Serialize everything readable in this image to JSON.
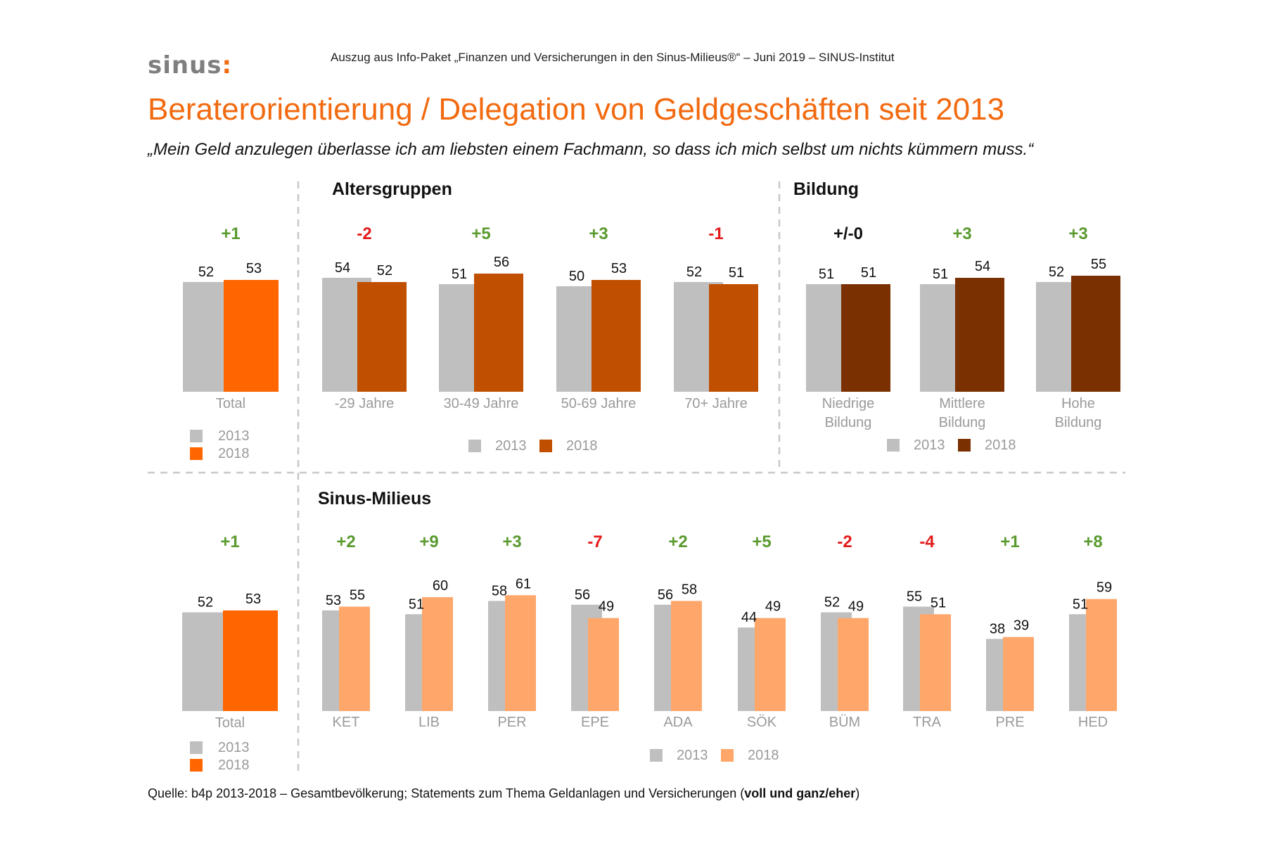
{
  "header": {
    "brand": "sinus",
    "brand_mark": ":",
    "source_line": "Auszug aus Info-Paket „Finanzen und Versicherungen in den Sinus-Milieus®“ – Juni 2019 – SINUS-Institut",
    "title": "Beraterorientierung / Delegation von Geldgeschäften seit 2013",
    "quote": "„Mein Geld anzulegen überlasse ich am liebsten einem Fachmann, so dass ich mich selbst um nichts kümmern muss.“"
  },
  "footer": {
    "prefix": "Quelle: b4p 2013-2018 – Gesamtbevölkerung; Statements zum Thema Geldanlagen und Versicherungen (",
    "bold": "voll und ganz/eher",
    "suffix": ")"
  },
  "colors": {
    "c2013": "#bfbfbf",
    "total2018": "#ff6600",
    "age2018": "#c04f00",
    "edu2018": "#7a3000",
    "milieu2018": "#ffa76b",
    "positive": "#5a9a2f",
    "negative": "#e31b1b",
    "neutral": "#111111",
    "title": "#f26a10"
  },
  "chart_data": [
    {
      "id": "total_top",
      "type": "bar",
      "title": "",
      "categories": [
        "Total"
      ],
      "series": [
        {
          "name": "2013",
          "values": [
            52
          ]
        },
        {
          "name": "2018",
          "values": [
            53
          ]
        }
      ],
      "changes": [
        "+1"
      ],
      "legend": [
        "2013",
        "2018"
      ]
    },
    {
      "id": "age",
      "type": "bar",
      "title": "Altersgruppen",
      "categories": [
        "-29 Jahre",
        "30-49 Jahre",
        "50-69 Jahre",
        "70+ Jahre"
      ],
      "series": [
        {
          "name": "2013",
          "values": [
            54,
            51,
            50,
            52
          ]
        },
        {
          "name": "2018",
          "values": [
            52,
            56,
            53,
            51
          ]
        }
      ],
      "changes": [
        "-2",
        "+5",
        "+3",
        "-1"
      ],
      "legend": [
        "2013",
        "2018"
      ]
    },
    {
      "id": "education",
      "type": "bar",
      "title": "Bildung",
      "categories": [
        [
          "Niedrige",
          "Bildung"
        ],
        [
          "Mittlere",
          "Bildung"
        ],
        [
          "Hohe",
          "Bildung"
        ]
      ],
      "series": [
        {
          "name": "2013",
          "values": [
            51,
            51,
            52
          ]
        },
        {
          "name": "2018",
          "values": [
            51,
            54,
            55
          ]
        }
      ],
      "changes": [
        "+/-0",
        "+3",
        "+3"
      ],
      "legend": [
        "2013",
        "2018"
      ]
    },
    {
      "id": "total_bottom",
      "type": "bar",
      "title": "",
      "categories": [
        "Total"
      ],
      "series": [
        {
          "name": "2013",
          "values": [
            52
          ]
        },
        {
          "name": "2018",
          "values": [
            53
          ]
        }
      ],
      "changes": [
        "+1"
      ],
      "legend": [
        "2013",
        "2018"
      ]
    },
    {
      "id": "milieus",
      "type": "bar",
      "title": "Sinus-Milieus",
      "categories": [
        "KET",
        "LIB",
        "PER",
        "EPE",
        "ADA",
        "SÖK",
        "BÜM",
        "TRA",
        "PRE",
        "HED"
      ],
      "series": [
        {
          "name": "2013",
          "values": [
            53,
            51,
            58,
            56,
            56,
            44,
            52,
            55,
            38,
            51
          ]
        },
        {
          "name": "2018",
          "values": [
            55,
            60,
            61,
            49,
            58,
            49,
            49,
            51,
            39,
            59
          ]
        }
      ],
      "changes": [
        "+2",
        "+9",
        "+3",
        "-7",
        "+2",
        "+5",
        "-2",
        "-4",
        "+1",
        "+8"
      ],
      "legend": [
        "2013",
        "2018"
      ]
    }
  ]
}
